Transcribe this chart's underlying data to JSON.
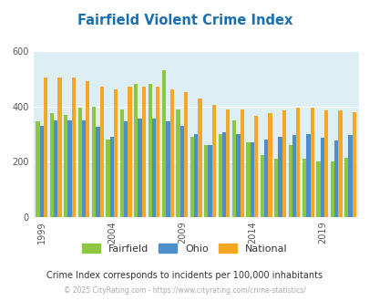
{
  "title": "Fairfield Violent Crime Index",
  "title_color": "#1a6faf",
  "subtitle": "Crime Index corresponds to incidents per 100,000 inhabitants",
  "subtitle_color": "#333333",
  "footer": "© 2025 CityRating.com - https://www.cityrating.com/crime-statistics/",
  "footer_color": "#aaaaaa",
  "years": [
    1999,
    2000,
    2001,
    2002,
    2003,
    2004,
    2005,
    2006,
    2007,
    2008,
    2009,
    2010,
    2011,
    2012,
    2013,
    2014,
    2015,
    2016,
    2017,
    2018,
    2019,
    2020,
    2021
  ],
  "fairfield": [
    345,
    375,
    370,
    395,
    400,
    280,
    390,
    480,
    480,
    530,
    390,
    290,
    260,
    300,
    350,
    270,
    225,
    210,
    260,
    210,
    200,
    200,
    215
  ],
  "ohio": [
    330,
    350,
    350,
    350,
    325,
    290,
    345,
    355,
    355,
    345,
    330,
    300,
    260,
    305,
    300,
    270,
    280,
    290,
    295,
    300,
    285,
    275,
    295
  ],
  "national": [
    505,
    505,
    505,
    490,
    470,
    460,
    470,
    470,
    470,
    460,
    450,
    430,
    405,
    390,
    390,
    365,
    375,
    385,
    395,
    395,
    385,
    385,
    380
  ],
  "fairfield_color": "#8dc63f",
  "ohio_color": "#4d8fcc",
  "national_color": "#f5a623",
  "bg_color": "#ddeef5",
  "ylim": [
    0,
    600
  ],
  "yticks": [
    0,
    200,
    400,
    600
  ],
  "bar_width": 0.28,
  "legend_labels": [
    "Fairfield",
    "Ohio",
    "National"
  ],
  "xtick_years": [
    1999,
    2004,
    2009,
    2014,
    2019
  ]
}
